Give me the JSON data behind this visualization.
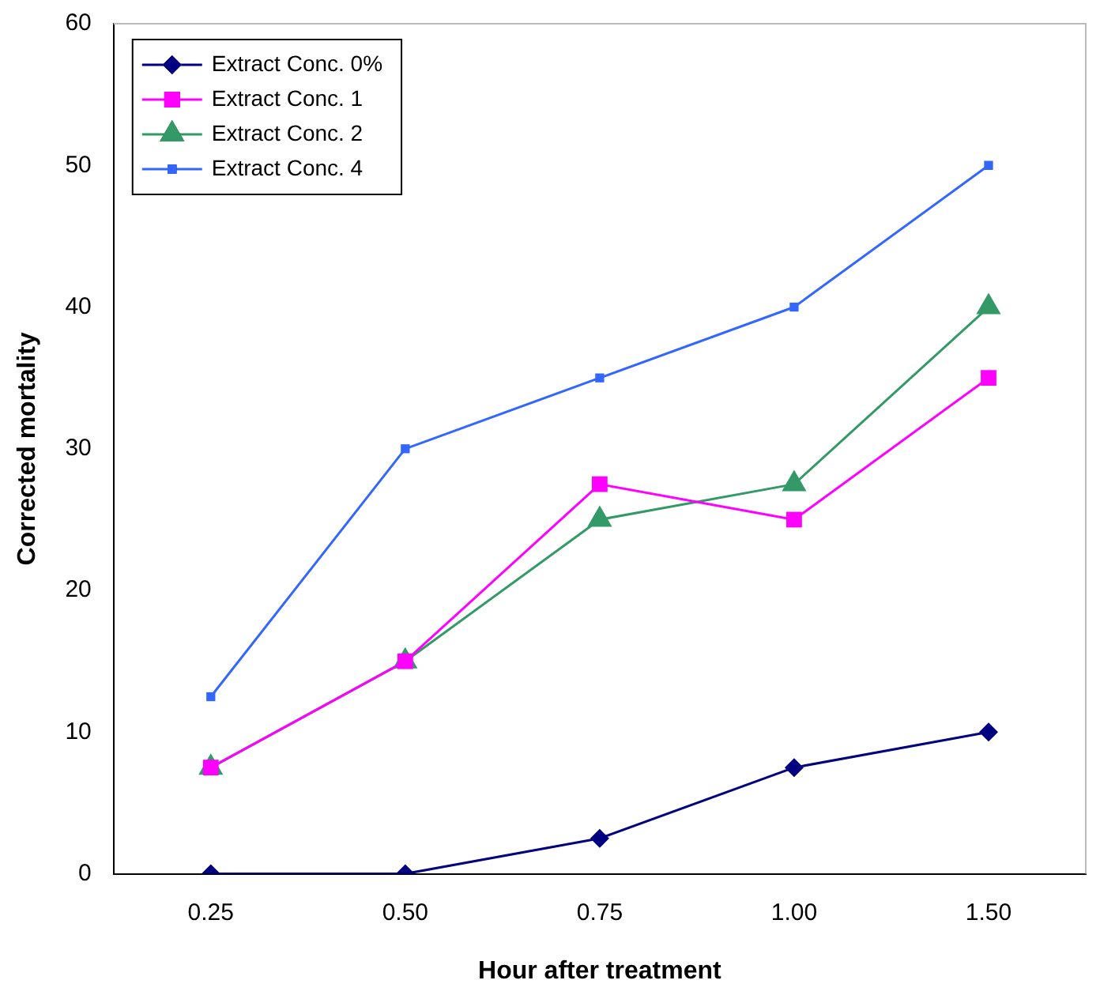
{
  "chart_data": {
    "type": "line",
    "xlabel": "Hour after treatment",
    "ylabel": "Corrected mortality",
    "categories": [
      "0.25",
      "0.50",
      "0.75",
      "1.00",
      "1.50"
    ],
    "series": [
      {
        "name": "Extract Conc. 0%",
        "color": "#000080",
        "marker": "diamond",
        "values": [
          0,
          0,
          2.5,
          7.5,
          10
        ]
      },
      {
        "name": "Extract Conc. 1",
        "color": "#ff00ff",
        "marker": "square",
        "values": [
          7.5,
          15,
          27.5,
          25,
          35
        ]
      },
      {
        "name": "Extract Conc. 2",
        "color": "#339966",
        "marker": "triangle",
        "values": [
          7.5,
          15,
          25,
          27.5,
          40
        ]
      },
      {
        "name": "Extract Conc. 4",
        "color": "#3366ff",
        "marker": "square",
        "values": [
          12.5,
          30,
          35,
          40,
          50
        ]
      }
    ],
    "ylim": [
      0,
      60
    ],
    "yticks": [
      0,
      10,
      20,
      30,
      40,
      50,
      60
    ],
    "grid": false,
    "legend": "top left",
    "line_style": "solid"
  }
}
